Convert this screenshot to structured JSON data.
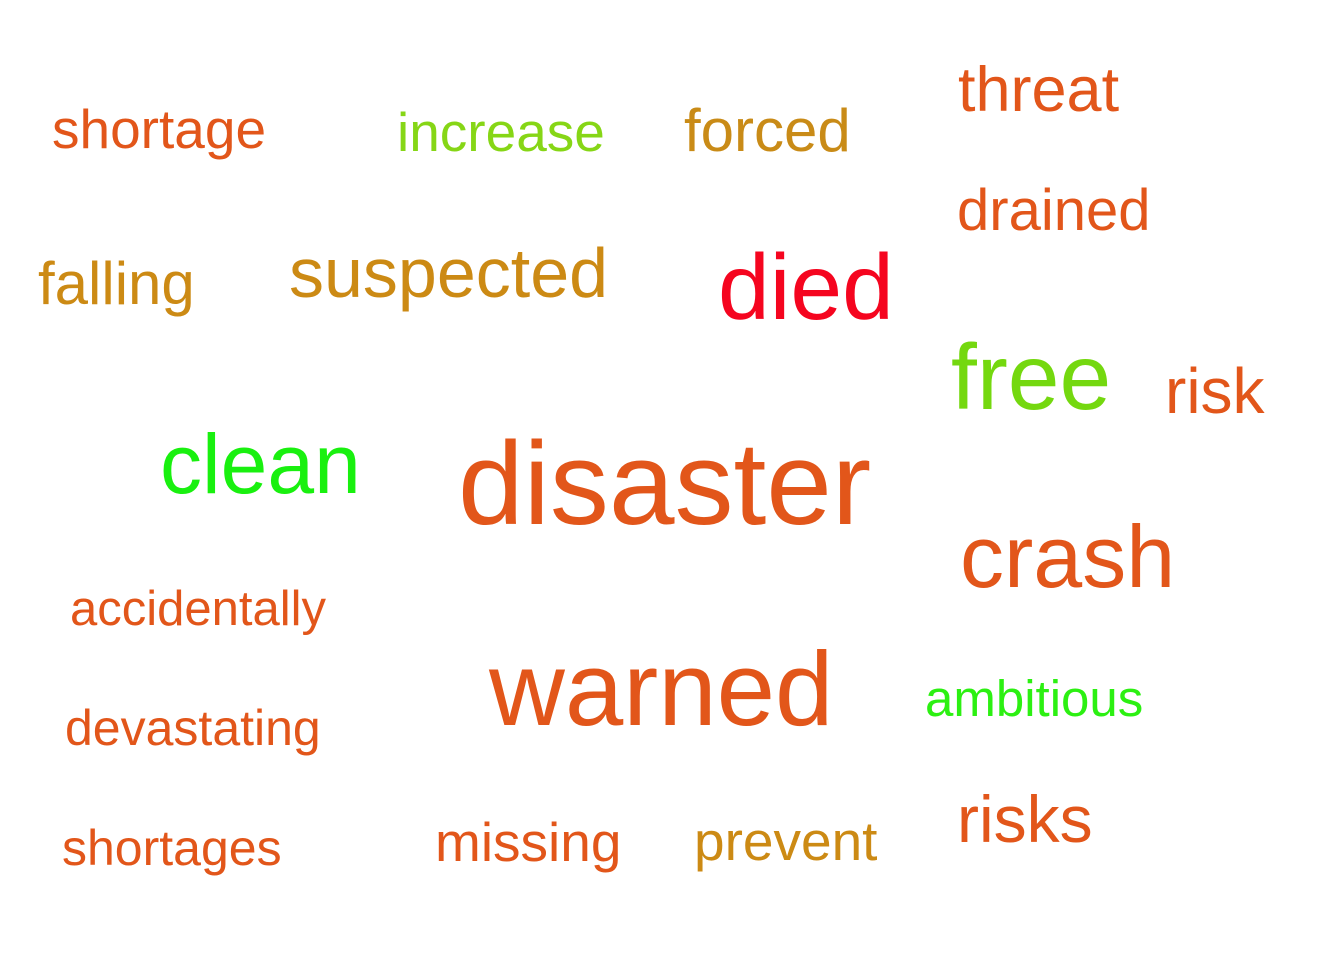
{
  "colors": {
    "orange": "#e2561a",
    "gold": "#cc8a14",
    "red": "#f5051f",
    "lime": "#7ed40f",
    "green": "#19f00f",
    "bright_green": "#2cf012"
  },
  "words": [
    {
      "text": "shortage",
      "color": "#e2561a"
    },
    {
      "text": "increase",
      "color": "#86d616"
    },
    {
      "text": "forced",
      "color": "#c98b17"
    },
    {
      "text": "threat",
      "color": "#e2561a"
    },
    {
      "text": "drained",
      "color": "#e2561a"
    },
    {
      "text": "falling",
      "color": "#cc8a14"
    },
    {
      "text": "suspected",
      "color": "#cc8a14"
    },
    {
      "text": "died",
      "color": "#f5051f"
    },
    {
      "text": "free",
      "color": "#74d80f"
    },
    {
      "text": "risk",
      "color": "#e2561a"
    },
    {
      "text": "clean",
      "color": "#19f00f"
    },
    {
      "text": "disaster",
      "color": "#e2561a"
    },
    {
      "text": "crash",
      "color": "#e2561a"
    },
    {
      "text": "accidentally",
      "color": "#e2561a"
    },
    {
      "text": "warned",
      "color": "#e2561a"
    },
    {
      "text": "ambitious",
      "color": "#2cf012"
    },
    {
      "text": "devastating",
      "color": "#e2561a"
    },
    {
      "text": "risks",
      "color": "#e2561a"
    },
    {
      "text": "shortages",
      "color": "#e2561a"
    },
    {
      "text": "missing",
      "color": "#e2561a"
    },
    {
      "text": "prevent",
      "color": "#cc8a14"
    }
  ]
}
